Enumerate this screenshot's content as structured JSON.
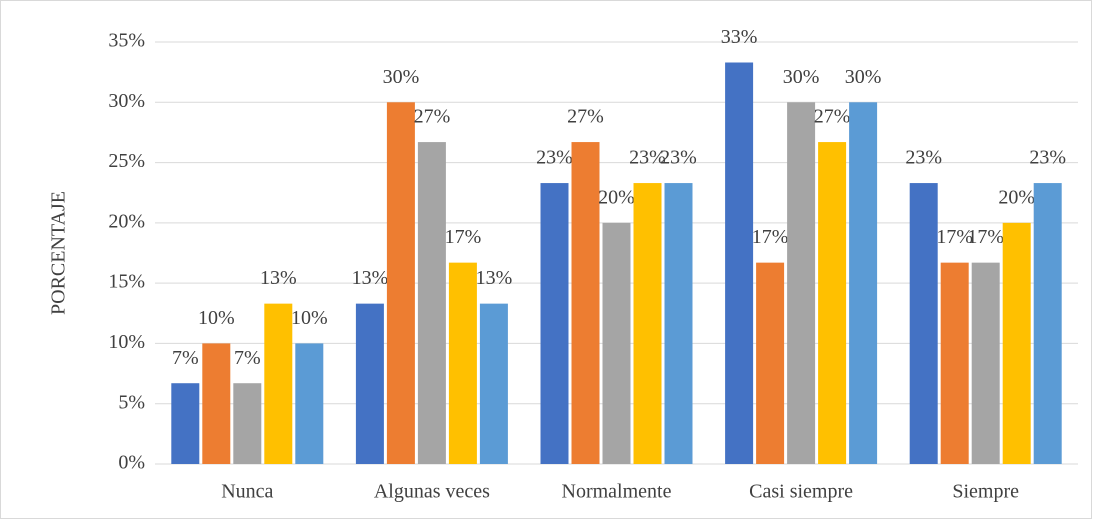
{
  "chart_data": {
    "type": "bar",
    "y_label": "PORCENTAJE",
    "categories": [
      "Nunca",
      "Algunas veces",
      "Normalmente",
      "Casi siempre",
      "Siempre"
    ],
    "series": [
      {
        "color": "#4472c4",
        "values": [
          6.7,
          13.3,
          23.3,
          33.3,
          23.3
        ],
        "value_labels": [
          "7%",
          "13%",
          "23%",
          "33%",
          "23%"
        ]
      },
      {
        "color": "#ed7d31",
        "values": [
          10,
          30,
          26.7,
          16.7,
          16.7
        ],
        "value_labels": [
          "10%",
          "30%",
          "27%",
          "17%",
          "17%"
        ]
      },
      {
        "color": "#a5a5a5",
        "values": [
          6.7,
          26.7,
          20,
          30,
          16.7
        ],
        "value_labels": [
          "7%",
          "27%",
          "20%",
          "30%",
          "17%"
        ]
      },
      {
        "color": "#ffc000",
        "values": [
          13.3,
          16.7,
          23.3,
          26.7,
          20
        ],
        "value_labels": [
          "13%",
          "17%",
          "23%",
          "27%",
          "20%"
        ]
      },
      {
        "color": "#5b9bd5",
        "values": [
          10,
          13.3,
          23.3,
          30,
          23.3
        ],
        "value_labels": [
          "10%",
          "13%",
          "23%",
          "30%",
          "23%"
        ]
      }
    ],
    "ylim": [
      0,
      35
    ],
    "yticks": [
      {
        "value": 0,
        "label": "0%"
      },
      {
        "value": 5,
        "label": "5%"
      },
      {
        "value": 10,
        "label": "10%"
      },
      {
        "value": 15,
        "label": "15%"
      },
      {
        "value": 20,
        "label": "20%"
      },
      {
        "value": 25,
        "label": "25%"
      },
      {
        "value": 30,
        "label": "30%"
      },
      {
        "value": 35,
        "label": "35%"
      }
    ],
    "grid": true
  }
}
